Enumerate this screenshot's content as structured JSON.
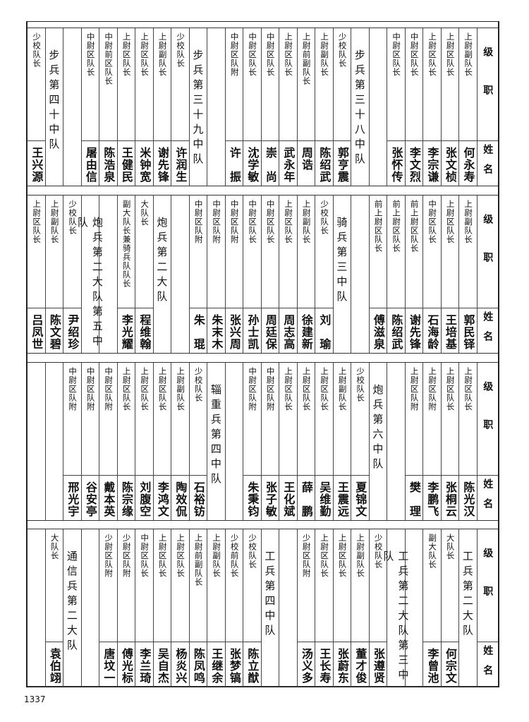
{
  "header": {
    "rank_label": "级职",
    "name_label": "姓名"
  },
  "page_number": "1337",
  "bands": [
    {
      "columns": [
        {
          "type": "person",
          "rank": "上尉副队长",
          "name": "何永寿"
        },
        {
          "type": "person",
          "rank": "上尉区队长",
          "name": "张文桢"
        },
        {
          "type": "person",
          "rank": "上尉区队长",
          "name": "李宗谦"
        },
        {
          "type": "person",
          "rank": "中尉区队长",
          "name": "李文烈"
        },
        {
          "type": "person",
          "rank": "中尉区队长",
          "name": "张怀传"
        },
        {
          "type": "empty"
        },
        {
          "type": "unit",
          "label": "步兵第三十八中队"
        },
        {
          "type": "person",
          "rank": "少校队长",
          "name": "郭亨震"
        },
        {
          "type": "person",
          "rank": "上尉副队长",
          "name": "陈绍武"
        },
        {
          "type": "person",
          "rank": "上尉前副队长",
          "name": "周诰"
        },
        {
          "type": "person",
          "rank": "上尉区队长",
          "name": "武永年"
        },
        {
          "type": "person",
          "rank": "中尉区队长",
          "name": "崇　尚"
        },
        {
          "type": "person",
          "rank": "中尉区队长",
          "name": "沈学敏"
        },
        {
          "type": "person",
          "rank": "中尉区队附",
          "name": "许　振"
        },
        {
          "type": "empty"
        },
        {
          "type": "unit",
          "label": "步兵第三十九中队"
        },
        {
          "type": "person",
          "rank": "少校队长",
          "name": "许润生"
        },
        {
          "type": "person",
          "rank": "上尉副队长",
          "name": "谢先锋"
        },
        {
          "type": "person",
          "rank": "上尉区队长",
          "name": "米钟宽"
        },
        {
          "type": "person",
          "rank": "上尉区队长",
          "name": "王健民"
        },
        {
          "type": "person",
          "rank": "中尉前区队长",
          "name": "陈浩泉"
        },
        {
          "type": "person",
          "rank": "中尉区队长",
          "name": "屠由信"
        },
        {
          "type": "empty"
        },
        {
          "type": "unit",
          "label": "步兵第四十中队"
        },
        {
          "type": "person",
          "rank": "少校队长",
          "name": "王兴源"
        }
      ]
    },
    {
      "columns": [
        {
          "type": "person",
          "rank": "上尉副队长",
          "name": "郭民铎"
        },
        {
          "type": "person",
          "rank": "上尉区队长",
          "name": "王培基"
        },
        {
          "type": "person",
          "rank": "中尉区队长",
          "name": "石海龄"
        },
        {
          "type": "person",
          "rank": "前上尉区队长",
          "name": "谢先锋"
        },
        {
          "type": "person",
          "rank": "前上尉区队长",
          "name": "陈绍武"
        },
        {
          "type": "person",
          "rank": "前上尉区队长",
          "name": "傅滋泉"
        },
        {
          "type": "empty"
        },
        {
          "type": "unit",
          "label": "骑兵第三中队"
        },
        {
          "type": "person",
          "rank": "少校队长",
          "name": "刘　瑜"
        },
        {
          "type": "person",
          "rank": "上尉副队长",
          "name": "徐建新"
        },
        {
          "type": "person",
          "rank": "上尉区队长",
          "name": "周志高"
        },
        {
          "type": "person",
          "rank": "中尉区队长",
          "name": "周廷保"
        },
        {
          "type": "person",
          "rank": "中尉区队长",
          "name": "孙士凯"
        },
        {
          "type": "person",
          "rank": "中尉区队附",
          "name": "张兴周"
        },
        {
          "type": "person",
          "rank": "中尉区队附",
          "name": "朱末木"
        },
        {
          "type": "person",
          "rank": "中尉区队附",
          "name": "朱　琨"
        },
        {
          "type": "empty"
        },
        {
          "type": "unit",
          "label": "炮兵第二大队"
        },
        {
          "type": "person",
          "rank": "大队长",
          "name": "程维翰"
        },
        {
          "type": "person",
          "rank": "副大队长兼骑兵队队长",
          "name": "李光耀"
        },
        {
          "type": "empty"
        },
        {
          "type": "unit",
          "label": "炮兵第二大队第五中队"
        },
        {
          "type": "person",
          "rank": "少校队长",
          "name": "尹绍珍"
        },
        {
          "type": "person",
          "rank": "上尉副队长",
          "name": "陈文碧"
        },
        {
          "type": "person",
          "rank": "上尉区队长",
          "name": "吕凤世"
        }
      ]
    },
    {
      "columns": [
        {
          "type": "person",
          "rank": "上尉区队长",
          "name": "陈光汉"
        },
        {
          "type": "person",
          "rank": "上尉区队长",
          "name": "张桐云"
        },
        {
          "type": "person",
          "rank": "上尉区队附",
          "name": "李鹏飞"
        },
        {
          "type": "person",
          "rank": "上尉区队附",
          "name": "樊　理"
        },
        {
          "type": "empty"
        },
        {
          "type": "unit",
          "label": "炮兵第六中队"
        },
        {
          "type": "person",
          "rank": "少校队长",
          "name": "夏锦文"
        },
        {
          "type": "person",
          "rank": "上尉副队长",
          "name": "王震远"
        },
        {
          "type": "person",
          "rank": "上尉区队长",
          "name": "吴维勤"
        },
        {
          "type": "person",
          "rank": "上尉区队长",
          "name": "薛　鹏"
        },
        {
          "type": "person",
          "rank": "上尉区队长",
          "name": "王化斌"
        },
        {
          "type": "person",
          "rank": "中尉区队附",
          "name": "张子敏"
        },
        {
          "type": "person",
          "rank": "中尉区队附",
          "name": "朱秉钧"
        },
        {
          "type": "empty"
        },
        {
          "type": "unit",
          "label": "辎重兵第四中队"
        },
        {
          "type": "person",
          "rank": "少校队长",
          "name": "石裕钫"
        },
        {
          "type": "person",
          "rank": "上尉副队长",
          "name": "陶效侃"
        },
        {
          "type": "person",
          "rank": "上尉区队长",
          "name": "李鸿文"
        },
        {
          "type": "person",
          "rank": "上尉区队长",
          "name": "刘腹空"
        },
        {
          "type": "person",
          "rank": "上尉区队长",
          "name": "陈宗缘"
        },
        {
          "type": "person",
          "rank": "中尉区队附",
          "name": "戴本英"
        },
        {
          "type": "person",
          "rank": "中尉区队附",
          "name": "谷安亭"
        },
        {
          "type": "person",
          "rank": "中尉区队附",
          "name": "邢光宇"
        },
        {
          "type": "empty"
        },
        {
          "type": "empty"
        }
      ]
    },
    {
      "columns": [
        {
          "type": "unit",
          "label": "工兵第二大队"
        },
        {
          "type": "person",
          "rank": "大队长",
          "name": "何宗文"
        },
        {
          "type": "person",
          "rank": "副大队长",
          "name": "李曾池"
        },
        {
          "type": "empty"
        },
        {
          "type": "unit",
          "label": "工兵第二大队第三中队"
        },
        {
          "type": "person",
          "rank": "少校队长",
          "name": "张遵贤"
        },
        {
          "type": "person",
          "rank": "上尉副队长",
          "name": "董才俊"
        },
        {
          "type": "person",
          "rank": "上尉区队长",
          "name": "张蔚东"
        },
        {
          "type": "person",
          "rank": "上尉区队长",
          "name": "王长寿"
        },
        {
          "type": "person",
          "rank": "少尉区队附",
          "name": "汤义多"
        },
        {
          "type": "empty"
        },
        {
          "type": "unit",
          "label": "工兵第四中队"
        },
        {
          "type": "person",
          "rank": "少校队长",
          "name": "陈立猷"
        },
        {
          "type": "person",
          "rank": "少校前队长",
          "name": "张梦镐"
        },
        {
          "type": "person",
          "rank": "上尉副队长",
          "name": "王继余"
        },
        {
          "type": "person",
          "rank": "上尉前副队长",
          "name": "陈凤鸣"
        },
        {
          "type": "person",
          "rank": "上尉区队长",
          "name": "杨炎兴"
        },
        {
          "type": "person",
          "rank": "上尉区队长",
          "name": "吴自杰"
        },
        {
          "type": "person",
          "rank": "中尉区队长",
          "name": "李兰琦"
        },
        {
          "type": "person",
          "rank": "少尉区队附",
          "name": "傅光标"
        },
        {
          "type": "person",
          "rank": "少尉区队附",
          "name": "唐坟一"
        },
        {
          "type": "empty"
        },
        {
          "type": "unit",
          "label": "通信兵第二大队"
        },
        {
          "type": "person",
          "rank": "大队长",
          "name": "袁伯翊"
        },
        {
          "type": "empty"
        }
      ]
    }
  ]
}
